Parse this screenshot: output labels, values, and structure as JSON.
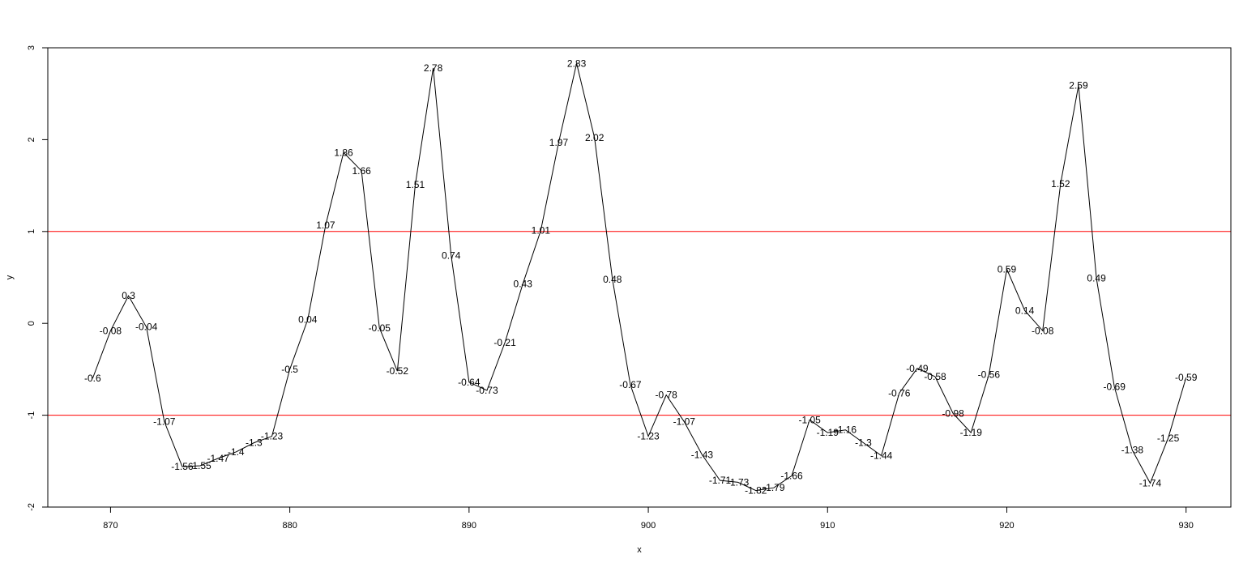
{
  "chart_data": {
    "type": "line",
    "title": "",
    "xlabel": "x",
    "ylabel": "y",
    "xlim": [
      866.5,
      932.5
    ],
    "ylim": [
      -2,
      3
    ],
    "xticks": [
      870,
      880,
      890,
      900,
      910,
      920,
      930
    ],
    "yticks": [
      -2,
      -1,
      0,
      1,
      2,
      3
    ],
    "grid": false,
    "legend": "none",
    "line_color": "#000000",
    "reference_lines": [
      {
        "y": 1,
        "color": "#ff0000"
      },
      {
        "y": -1,
        "color": "#ff0000"
      }
    ],
    "series": [
      {
        "x": [
          869,
          870,
          871,
          872,
          873,
          874,
          875,
          876,
          877,
          878,
          879,
          880,
          881,
          882,
          883,
          884,
          885,
          886,
          887,
          888,
          889,
          890,
          891,
          892,
          893,
          894,
          895,
          896,
          897,
          898,
          899,
          900,
          901,
          902,
          903,
          904,
          905,
          906,
          907,
          908,
          909,
          910,
          911,
          912,
          913,
          914,
          915,
          916,
          917,
          918,
          919,
          920,
          921,
          922,
          923,
          924,
          925,
          926,
          927,
          928,
          929,
          930
        ],
        "values": [
          -0.6,
          -0.08,
          0.3,
          -0.04,
          -1.07,
          -1.56,
          -1.55,
          -1.47,
          -1.4,
          -1.3,
          -1.23,
          -0.5,
          0.04,
          1.07,
          1.86,
          1.66,
          -0.05,
          -0.52,
          1.51,
          2.78,
          0.74,
          -0.64,
          -0.73,
          -0.21,
          0.43,
          1.01,
          1.97,
          2.83,
          2.02,
          0.48,
          -0.67,
          -1.23,
          -0.78,
          -1.07,
          -1.43,
          -1.71,
          -1.73,
          -1.82,
          -1.79,
          -1.66,
          -1.05,
          -1.19,
          -1.16,
          -1.3,
          -1.44,
          -0.76,
          -0.49,
          -0.58,
          -0.98,
          -1.19,
          -0.56,
          0.59,
          0.14,
          -0.08,
          1.52,
          2.59,
          0.49,
          -0.69,
          -1.38,
          -1.74,
          -1.25,
          -0.59
        ],
        "labels": [
          "-0.6",
          "-0.08",
          "0.3",
          "-0.04",
          "-1.07",
          "-1.56",
          "-1.55",
          "-1.47",
          "-1.4",
          "-1.3",
          "-1.23",
          "-0.5",
          "0.04",
          "1.07",
          "1.86",
          "1.66",
          "-0.05",
          "-0.52",
          "1.51",
          "2.78",
          "0.74",
          "-0.64",
          "-0.73",
          "-0.21",
          "0.43",
          "1.01",
          "1.97",
          "2.83",
          "2.02",
          "0.48",
          "-0.67",
          "-1.23",
          "-0.78",
          "-1.07",
          "-1.43",
          "-1.71",
          "-1.73",
          "-1.82",
          "-1.79",
          "-1.66",
          "-1.05",
          "-1.19",
          "-1.16",
          "-1.3",
          "-1.44",
          "-0.76",
          "-0.49",
          "-0.58",
          "-0.98",
          "-1.19",
          "-0.56",
          "0.59",
          "0.14",
          "-0.08",
          "1.52",
          "2.59",
          "0.49",
          "-0.69",
          "-1.38",
          "-1.74",
          "-1.25",
          "-0.59"
        ]
      }
    ]
  }
}
